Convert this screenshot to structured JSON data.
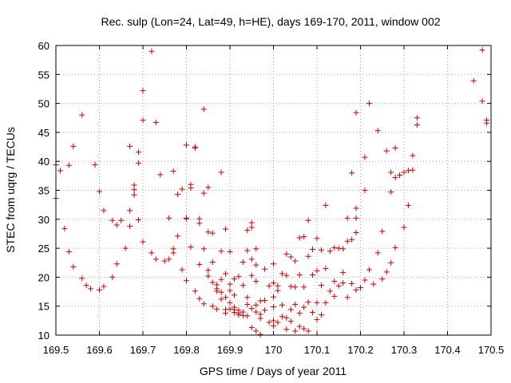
{
  "chart_data": {
    "type": "scatter",
    "title": "Rec. sulp (Lon=24, Lat=49, h=HE), days 169-170, 2011, window 002",
    "xlabel": "GPS time / Days of year 2011",
    "ylabel": "STEC from uqrg / TECUs",
    "xlim": [
      169.5,
      170.5
    ],
    "ylim": [
      10,
      60
    ],
    "xticks": [
      169.5,
      169.6,
      169.7,
      169.8,
      169.9,
      170,
      170.1,
      170.2,
      170.3,
      170.4,
      170.5
    ],
    "xtick_labels": [
      "169.5",
      "169.6",
      "169.7",
      "169.8",
      "169.9",
      "170",
      "170.1",
      "170.2",
      "170.3",
      "170.4",
      "170.5"
    ],
    "yticks": [
      10,
      15,
      20,
      25,
      30,
      35,
      40,
      45,
      50,
      55,
      60
    ],
    "ytick_labels": [
      "10",
      "15",
      "20",
      "25",
      "30",
      "35",
      "40",
      "45",
      "50",
      "55",
      "60"
    ],
    "grid": true,
    "marker": "+",
    "marker_color": "#cc0000",
    "points": [
      [
        169.5,
        33.6
      ],
      [
        169.5,
        39.4
      ],
      [
        169.51,
        38.4
      ],
      [
        169.52,
        28.4
      ],
      [
        169.53,
        39.3
      ],
      [
        169.53,
        24.4
      ],
      [
        169.54,
        21.8
      ],
      [
        169.54,
        42.6
      ],
      [
        169.56,
        48.0
      ],
      [
        169.56,
        19.8
      ],
      [
        169.57,
        18.6
      ],
      [
        169.58,
        18.0
      ],
      [
        169.59,
        39.4
      ],
      [
        169.6,
        17.8
      ],
      [
        169.6,
        34.8
      ],
      [
        169.61,
        18.4
      ],
      [
        169.61,
        31.5
      ],
      [
        169.63,
        20.0
      ],
      [
        169.63,
        29.8
      ],
      [
        169.64,
        22.3
      ],
      [
        169.64,
        29.0
      ],
      [
        169.65,
        29.8
      ],
      [
        169.66,
        25.0
      ],
      [
        169.67,
        42.6
      ],
      [
        169.67,
        28.8
      ],
      [
        169.67,
        31.5
      ],
      [
        169.68,
        35.9
      ],
      [
        169.68,
        35.1
      ],
      [
        169.68,
        34.2
      ],
      [
        169.69,
        41.6
      ],
      [
        169.69,
        39.7
      ],
      [
        169.69,
        29.9
      ],
      [
        169.7,
        47.1
      ],
      [
        169.7,
        52.2
      ],
      [
        169.7,
        26.1
      ],
      [
        169.72,
        59.0
      ],
      [
        169.72,
        24.2
      ],
      [
        169.73,
        23.1
      ],
      [
        169.73,
        46.7
      ],
      [
        169.74,
        37.7
      ],
      [
        169.75,
        22.8
      ],
      [
        169.76,
        30.2
      ],
      [
        169.76,
        23.1
      ],
      [
        169.77,
        38.3
      ],
      [
        169.77,
        24.9
      ],
      [
        169.77,
        24.2
      ],
      [
        169.78,
        34.3
      ],
      [
        169.78,
        27.1
      ],
      [
        169.79,
        21.3
      ],
      [
        169.79,
        35.2
      ],
      [
        169.8,
        42.8
      ],
      [
        169.8,
        30.2
      ],
      [
        169.8,
        30.1
      ],
      [
        169.8,
        19.4
      ],
      [
        169.81,
        36.0
      ],
      [
        169.81,
        35.4
      ],
      [
        169.81,
        25.2
      ],
      [
        169.82,
        17.6
      ],
      [
        169.82,
        42.5
      ],
      [
        169.82,
        42.3
      ],
      [
        169.83,
        30.1
      ],
      [
        169.83,
        29.3
      ],
      [
        169.83,
        22.2
      ],
      [
        169.83,
        16.3
      ],
      [
        169.84,
        49.0
      ],
      [
        169.84,
        34.5
      ],
      [
        169.84,
        24.9
      ],
      [
        169.84,
        15.4
      ],
      [
        169.85,
        35.5
      ],
      [
        169.85,
        27.8
      ],
      [
        169.85,
        21.2
      ],
      [
        169.85,
        20.2
      ],
      [
        169.86,
        15.0
      ],
      [
        169.86,
        27.6
      ],
      [
        169.86,
        19.1
      ],
      [
        169.86,
        22.6
      ],
      [
        169.87,
        18.7
      ],
      [
        169.87,
        14.5
      ],
      [
        169.87,
        18.0
      ],
      [
        169.87,
        17.6
      ],
      [
        169.88,
        19.6
      ],
      [
        169.88,
        24.5
      ],
      [
        169.88,
        38.1
      ],
      [
        169.88,
        17.4
      ],
      [
        169.88,
        16.2
      ],
      [
        169.89,
        28.3
      ],
      [
        169.89,
        20.6
      ],
      [
        169.89,
        16.5
      ],
      [
        169.89,
        14.4
      ],
      [
        169.89,
        13.8
      ],
      [
        169.9,
        24.4
      ],
      [
        169.9,
        18.8
      ],
      [
        169.9,
        17.7
      ],
      [
        169.9,
        15.6
      ],
      [
        169.9,
        14.5
      ],
      [
        169.91,
        19.7
      ],
      [
        169.91,
        16.9
      ],
      [
        169.91,
        14.4
      ],
      [
        169.91,
        13.9
      ],
      [
        169.91,
        14.8
      ],
      [
        169.92,
        20.1
      ],
      [
        169.92,
        14.3
      ],
      [
        169.92,
        13.8
      ],
      [
        169.92,
        13.5
      ],
      [
        169.93,
        22.6
      ],
      [
        169.93,
        18.6
      ],
      [
        169.93,
        14.0
      ],
      [
        169.93,
        13.4
      ],
      [
        169.94,
        24.6
      ],
      [
        169.94,
        28.1
      ],
      [
        169.94,
        16.5
      ],
      [
        169.94,
        15.3
      ],
      [
        169.94,
        13.3
      ],
      [
        169.95,
        29.4
      ],
      [
        169.95,
        28.6
      ],
      [
        169.95,
        23.1
      ],
      [
        169.95,
        20.3
      ],
      [
        169.95,
        14.6
      ],
      [
        169.95,
        11.3
      ],
      [
        169.96,
        22.1
      ],
      [
        169.96,
        19.3
      ],
      [
        169.96,
        15.2
      ],
      [
        169.96,
        14.0
      ],
      [
        169.96,
        10.7
      ],
      [
        169.96,
        24.9
      ],
      [
        169.97,
        15.9
      ],
      [
        169.97,
        13.6
      ],
      [
        169.97,
        12.9
      ],
      [
        169.97,
        10.1
      ],
      [
        169.98,
        21.4
      ],
      [
        169.98,
        16.0
      ],
      [
        169.98,
        14.3
      ],
      [
        169.99,
        18.5
      ],
      [
        169.99,
        12.2
      ],
      [
        170.0,
        22.3
      ],
      [
        170.0,
        19.0
      ],
      [
        170.0,
        16.6
      ],
      [
        170.0,
        14.9
      ],
      [
        170.0,
        12.5
      ],
      [
        170.0,
        11.6
      ],
      [
        170.01,
        18.5
      ],
      [
        170.01,
        17.7
      ],
      [
        170.01,
        12.2
      ],
      [
        170.02,
        20.6
      ],
      [
        170.02,
        15.2
      ],
      [
        170.02,
        13.2
      ],
      [
        170.03,
        24.0
      ],
      [
        170.03,
        20.3
      ],
      [
        170.03,
        13.0
      ],
      [
        170.03,
        11.0
      ],
      [
        170.04,
        23.5
      ],
      [
        170.04,
        18.4
      ],
      [
        170.04,
        14.4
      ],
      [
        170.04,
        12.4
      ],
      [
        170.05,
        22.8
      ],
      [
        170.05,
        18.3
      ],
      [
        170.05,
        15.3
      ],
      [
        170.05,
        10.7
      ],
      [
        170.06,
        26.8
      ],
      [
        170.06,
        20.4
      ],
      [
        170.06,
        13.8
      ],
      [
        170.06,
        11.5
      ],
      [
        170.07,
        27.0
      ],
      [
        170.07,
        18.3
      ],
      [
        170.07,
        14.8
      ],
      [
        170.07,
        11.1
      ],
      [
        170.08,
        29.8
      ],
      [
        170.08,
        23.6
      ],
      [
        170.08,
        15.7
      ],
      [
        170.08,
        10.7
      ],
      [
        170.09,
        24.8
      ],
      [
        170.09,
        20.4
      ],
      [
        170.09,
        13.9
      ],
      [
        170.1,
        26.7
      ],
      [
        170.1,
        21.1
      ],
      [
        170.1,
        15.6
      ],
      [
        170.1,
        12.7
      ],
      [
        170.11,
        24.7
      ],
      [
        170.11,
        18.6
      ],
      [
        170.11,
        13.5
      ],
      [
        170.12,
        32.4
      ],
      [
        170.12,
        21.5
      ],
      [
        170.12,
        15.6
      ],
      [
        170.13,
        24.5
      ],
      [
        170.13,
        17.6
      ],
      [
        170.14,
        25.1
      ],
      [
        170.14,
        19.3
      ],
      [
        170.14,
        16.7
      ],
      [
        170.15,
        25.0
      ],
      [
        170.15,
        18.5
      ],
      [
        170.16,
        24.9
      ],
      [
        170.16,
        20.8
      ],
      [
        170.16,
        19.0
      ],
      [
        170.17,
        30.2
      ],
      [
        170.17,
        26.2
      ],
      [
        170.17,
        16.5
      ],
      [
        170.18,
        38.0
      ],
      [
        170.18,
        26.5
      ],
      [
        170.18,
        18.9
      ],
      [
        170.19,
        48.4
      ],
      [
        170.19,
        31.9
      ],
      [
        170.19,
        30.2
      ],
      [
        170.19,
        27.7
      ],
      [
        170.19,
        17.8
      ],
      [
        170.2,
        18.2
      ],
      [
        170.21,
        40.7
      ],
      [
        170.21,
        35.0
      ],
      [
        170.21,
        19.5
      ],
      [
        170.22,
        50.0
      ],
      [
        170.22,
        21.3
      ],
      [
        170.23,
        18.8
      ],
      [
        170.24,
        45.3
      ],
      [
        170.24,
        24.2
      ],
      [
        170.25,
        19.7
      ],
      [
        170.25,
        27.9
      ],
      [
        170.26,
        41.8
      ],
      [
        170.26,
        20.9
      ],
      [
        170.27,
        38.1
      ],
      [
        170.27,
        34.7
      ],
      [
        170.27,
        22.5
      ],
      [
        170.28,
        42.3
      ],
      [
        170.28,
        37.2
      ],
      [
        170.28,
        25.1
      ],
      [
        170.29,
        37.6
      ],
      [
        170.3,
        28.6
      ],
      [
        170.3,
        38.1
      ],
      [
        170.31,
        32.4
      ],
      [
        170.31,
        38.4
      ],
      [
        170.32,
        38.5
      ],
      [
        170.32,
        41.0
      ],
      [
        170.33,
        47.5
      ],
      [
        170.33,
        46.3
      ],
      [
        170.46,
        53.9
      ],
      [
        170.48,
        59.2
      ],
      [
        170.48,
        50.4
      ],
      [
        170.49,
        47.1
      ],
      [
        170.49,
        46.6
      ]
    ]
  }
}
